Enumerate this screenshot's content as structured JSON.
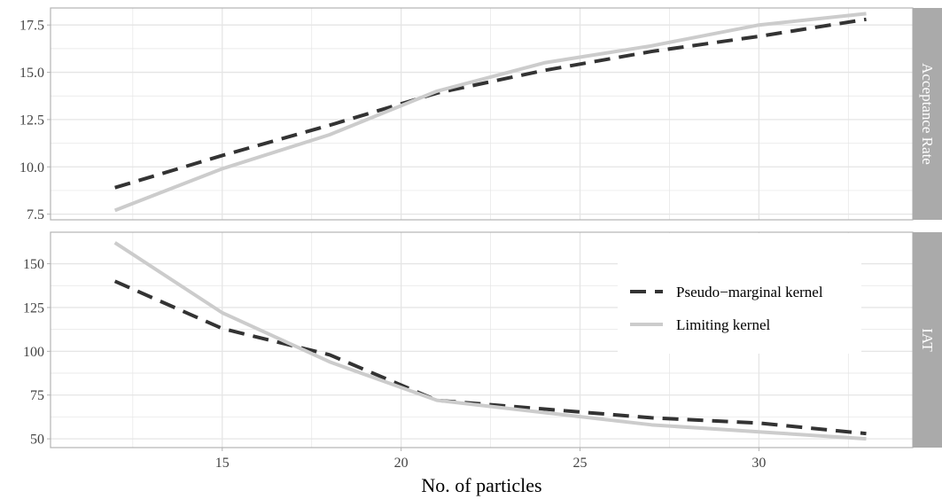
{
  "chart_data": {
    "type": "line",
    "xlabel": "No. of particles",
    "x": [
      12,
      15,
      18,
      21,
      24,
      27,
      30,
      33
    ],
    "x_ticks": [
      "15",
      "20",
      "25",
      "30"
    ],
    "xlim": [
      10.2,
      34.3
    ],
    "legend_position": "right, inside lower panel",
    "grid": true,
    "colors": {
      "pseudo_marginal": "#333333",
      "limiting": "#cccccc",
      "strip": "#aaaaaa",
      "grid": "#e5e5e5",
      "border": "#b3b3b3"
    },
    "legend": [
      {
        "key": "pseudo_marginal",
        "label": "Pseudo−marginal kernel",
        "dash": true
      },
      {
        "key": "limiting",
        "label": "Limiting kernel",
        "dash": false
      }
    ],
    "panels": [
      {
        "strip": "Acceptance Rate",
        "ylim": [
          7.2,
          18.4
        ],
        "y_ticks": [
          "7.5",
          "10.0",
          "12.5",
          "15.0",
          "17.5"
        ],
        "series": [
          {
            "key": "pseudo_marginal",
            "values": [
              8.9,
              10.6,
              12.2,
              13.9,
              15.1,
              16.1,
              16.9,
              17.8
            ]
          },
          {
            "key": "limiting",
            "values": [
              7.7,
              9.9,
              11.7,
              14.0,
              15.5,
              16.4,
              17.5,
              18.1
            ]
          }
        ]
      },
      {
        "strip": "IAT",
        "ylim": [
          45,
          168
        ],
        "y_ticks": [
          "50",
          "75",
          "100",
          "125",
          "150"
        ],
        "series": [
          {
            "key": "pseudo_marginal",
            "values": [
              140,
              113,
              98,
              72,
              67,
              62,
              59,
              53
            ]
          },
          {
            "key": "limiting",
            "values": [
              162,
              122,
              94,
              72,
              65,
              58,
              54,
              50
            ]
          }
        ]
      }
    ]
  }
}
